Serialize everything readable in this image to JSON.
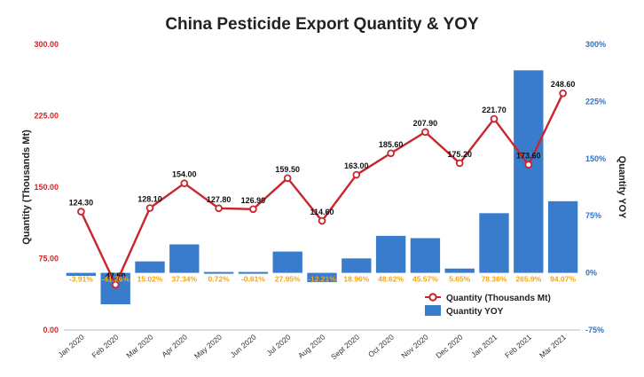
{
  "chart_data": {
    "type": "bar",
    "title": "China Pesticide Export Quantity & YOY",
    "ylabel_left": "Quantity (Thousands Mt)",
    "ylabel_right": "Quantity YOY",
    "categories": [
      "Jan 2020",
      "Feb 2020",
      "Mar 2020",
      "Apr 2020",
      "May 2020",
      "Jun 2020",
      "Jul 2020",
      "Aug 2020",
      "Sept 2020",
      "Oct 2020",
      "Nov 2020",
      "Dec 2020",
      "Jan 2021",
      "Feb 2021",
      "Mar 2021"
    ],
    "ylim_left": [
      0,
      300
    ],
    "ylim_right": [
      -75,
      300
    ],
    "yticks_left": [
      "0.00",
      "75.00",
      "150.00",
      "225.00",
      "300.00"
    ],
    "yticks_left_values": [
      0,
      75,
      150,
      225,
      300
    ],
    "yticks_right": [
      "-75%",
      "0%",
      "75%",
      "150%",
      "225%",
      "300%"
    ],
    "yticks_right_values": [
      -75,
      0,
      75,
      150,
      225,
      300
    ],
    "grid": false,
    "legend_position": "bottom-right",
    "series": [
      {
        "name": "Quantity (Thousands Mt)",
        "type": "line",
        "axis": "left",
        "color": "#c8262c",
        "values": [
          124.3,
          47.5,
          128.1,
          154.0,
          127.8,
          126.9,
          159.5,
          114.6,
          163.0,
          185.6,
          207.9,
          175.2,
          221.7,
          173.6,
          248.6
        ],
        "labels": [
          "124.30",
          "47.50",
          "128.10",
          "154.00",
          "127.80",
          "126.90",
          "159.50",
          "114.60",
          "163.00",
          "185.60",
          "207.90",
          "175.20",
          "221.70",
          "173.60",
          "248.60"
        ]
      },
      {
        "name": "Quantity YOY",
        "type": "bar",
        "axis": "right",
        "color": "#3a7ccc",
        "values": [
          -3.91,
          -41.26,
          15.02,
          37.34,
          0.72,
          -0.61,
          27.95,
          -12.21,
          18.96,
          48.62,
          45.57,
          5.65,
          78.36,
          265.9,
          94.07
        ],
        "labels": [
          "-3.91%",
          "-41.26%",
          "15.02%",
          "37.34%",
          "0.72%",
          "-0.61%",
          "27.95%",
          "-12.21%",
          "18.96%",
          "48.62%",
          "45.57%",
          "5.65%",
          "78.36%",
          "265.9%",
          "94.07%"
        ]
      }
    ]
  }
}
